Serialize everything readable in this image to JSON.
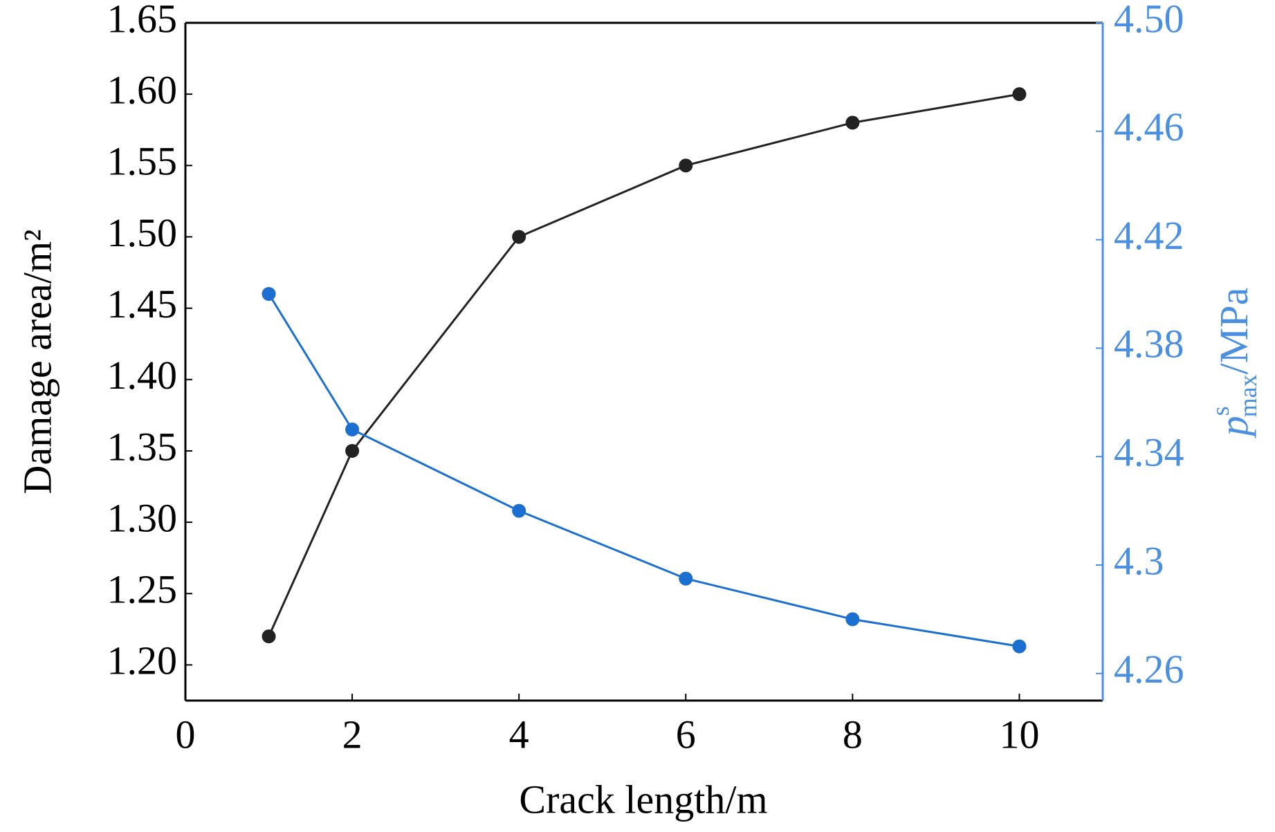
{
  "chart_data": {
    "type": "line",
    "xlabel": "Crack length/m",
    "ylabel": "Damage area/m²",
    "y2label": {
      "symbol": "p",
      "sup": "s",
      "sub": "max",
      "unit": "/MPa"
    },
    "x": [
      1,
      2,
      4,
      6,
      8,
      10
    ],
    "xlim": [
      0,
      11
    ],
    "xticks": [
      0,
      2,
      4,
      6,
      8,
      10
    ],
    "ylim": [
      1.175,
      1.65
    ],
    "yticks": [
      {
        "value": 1.2,
        "label": "1.20"
      },
      {
        "value": 1.25,
        "label": "1.25"
      },
      {
        "value": 1.3,
        "label": "1.30"
      },
      {
        "value": 1.35,
        "label": "1.35"
      },
      {
        "value": 1.4,
        "label": "1.40"
      },
      {
        "value": 1.45,
        "label": "1.45"
      },
      {
        "value": 1.5,
        "label": "1.50"
      },
      {
        "value": 1.55,
        "label": "1.55"
      },
      {
        "value": 1.6,
        "label": "1.60"
      },
      {
        "value": 1.65,
        "label": "1.65"
      }
    ],
    "y2lim": [
      4.25,
      4.5
    ],
    "y2ticks": [
      4.26,
      4.3,
      4.34,
      4.38,
      4.42,
      4.46,
      {
        "value": 4.5,
        "label": "4.50"
      }
    ],
    "y2color": "#4a8fe0",
    "series": [
      {
        "color": "#222222",
        "values": [
          1.22,
          1.35,
          1.5,
          1.55,
          1.58,
          1.6
        ]
      },
      {
        "color": "#1a6fd0",
        "axis": "y2",
        "values": [
          4.4,
          4.35,
          4.32,
          4.295,
          4.28,
          4.27
        ]
      }
    ]
  }
}
